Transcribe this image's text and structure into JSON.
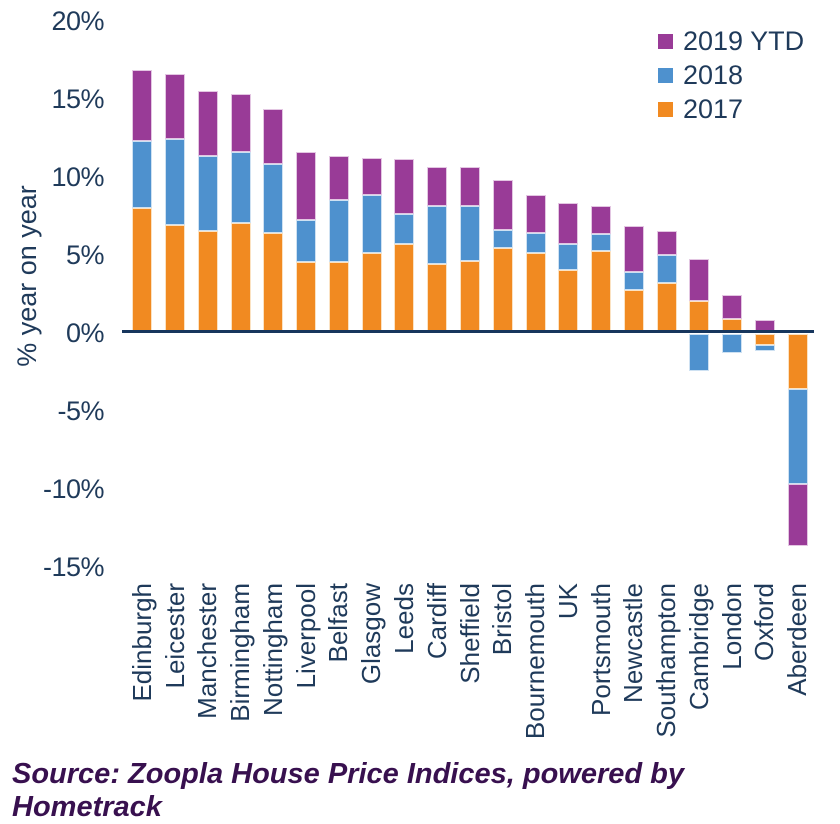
{
  "chart_data": {
    "type": "bar",
    "stacked": true,
    "categories": [
      "Edinburgh",
      "Leicester",
      "Manchester",
      "Birmingham",
      "Nottingham",
      "Liverpool",
      "Belfast",
      "Glasgow",
      "Leeds",
      "Cardiff",
      "Sheffield",
      "Bristol",
      "Bournemouth",
      "UK",
      "Portsmouth",
      "Newcastle",
      "Southampton",
      "Cambridge",
      "London",
      "Oxford",
      "Aberdeen"
    ],
    "series": [
      {
        "name": "2017",
        "color": "#F18A21",
        "border_color": "#FBE2C2",
        "values": [
          7.9,
          6.8,
          6.4,
          6.9,
          6.3,
          4.4,
          4.4,
          5.0,
          5.6,
          4.3,
          4.5,
          5.3,
          5.0,
          3.9,
          5.1,
          2.6,
          3.1,
          1.9,
          0.8,
          -0.7,
          -3.5
        ]
      },
      {
        "name": "2018",
        "color": "#4E91CE",
        "border_color": "#CEE1F2",
        "values": [
          4.3,
          5.5,
          4.8,
          4.6,
          4.4,
          2.7,
          4.0,
          3.7,
          1.9,
          3.7,
          3.5,
          1.2,
          1.3,
          1.7,
          1.1,
          1.2,
          1.8,
          -2.4,
          -1.2,
          -0.4,
          -6.1
        ]
      },
      {
        "name": "2019 YTD",
        "color": "#993B97",
        "border_color": "#E3C6E2",
        "values": [
          4.5,
          4.2,
          4.2,
          3.7,
          3.5,
          4.4,
          2.8,
          2.4,
          3.5,
          2.5,
          2.5,
          3.2,
          2.4,
          2.6,
          1.8,
          2.9,
          1.5,
          2.7,
          1.5,
          0.7,
          -4.0
        ]
      }
    ],
    "legend_order": [
      "2019 YTD",
      "2018",
      "2017"
    ],
    "legend_position": "top-right",
    "title": "",
    "xlabel": "",
    "ylabel": "% year on year",
    "y_ticks": [
      {
        "label": "20%",
        "value": 20
      },
      {
        "label": "15%",
        "value": 15
      },
      {
        "label": "10%",
        "value": 10
      },
      {
        "label": "5%",
        "value": 5
      },
      {
        "label": "0%",
        "value": 0
      },
      {
        "label": "-5%",
        "value": -5
      },
      {
        "label": "-10%",
        "value": -10
      },
      {
        "label": "-15%",
        "value": -15
      }
    ],
    "ylim": [
      -15,
      20
    ],
    "grid": false
  },
  "source_note": "Source: Zoopla House Price Indices, powered by Hometrack",
  "colors": {
    "background": "#FFFFFF",
    "axis_line": "#17365D",
    "tick_text": "#1F3A5A",
    "source_text": "#38104F"
  }
}
